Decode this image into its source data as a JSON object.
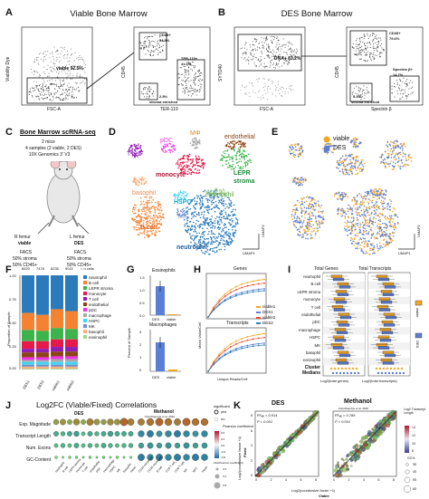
{
  "panels": {
    "A": {
      "letter": "A",
      "title": "Viable Bone Marrow",
      "left": {
        "ylabel": "Viability Dye",
        "xlabel": "FSC-A",
        "gate": "viable 92.5%"
      },
      "right": {
        "ylabel": "CD45",
        "xlabel": "TER-119",
        "gate_cd45": "CD45+",
        "gate_cd45_pct": "54.9%",
        "gate_ter": "TER-119+",
        "gate_ter_pct": "41.0%",
        "gate_stroma_pct": "2.5%",
        "gate_stroma": "stroma enriched"
      }
    },
    "B": {
      "letter": "B",
      "title": "DES Bone Marrow",
      "left": {
        "ylabel": "SYTO40",
        "xlabel": "FSC-A",
        "gate": "DNA+ 83.2%"
      },
      "right": {
        "ylabel": "CD45",
        "xlabel": "Spectrin β",
        "gate_cd45": "CD45+",
        "gate_cd45_pct": "79.6%",
        "gate_spec": "Spectrin β+",
        "gate_spec_pct": "14.7%",
        "gate_stroma_pct": "5.3%",
        "gate_stroma": "stroma enriched"
      }
    },
    "C": {
      "letter": "C",
      "title": "Bone Marrow scRNA-seq",
      "lines": [
        "2 mice",
        "4 samples (2 viable, 2 DES)",
        "10X Genomics 3' V3"
      ],
      "left_femur": "R femur",
      "left_type": "viable",
      "right_femur": "L femur",
      "right_type": "DES",
      "left_sort": [
        "FACS",
        "50% stroma",
        "50% CD45+"
      ],
      "right_sort": [
        "FACS",
        "50% stroma",
        "50% CD45+"
      ]
    },
    "D": {
      "letter": "D",
      "labels": [
        "T cell",
        "pDC",
        "MΦ",
        "endothelial",
        "monocyte",
        "LEPR",
        "stroma",
        "basophil",
        "HSPC",
        "eosinophil",
        "MK",
        "B cell",
        "neutrophil"
      ],
      "axis": [
        "UMAP1",
        "UMAP2"
      ]
    },
    "E": {
      "letter": "E",
      "legend": [
        "viable",
        "DES"
      ],
      "axis": [
        "UMAP1",
        "UMAP2"
      ]
    },
    "F": {
      "letter": "F",
      "counts": [
        "6620",
        "7478",
        "8235",
        "5022"
      ],
      "counts_note": "= n cells",
      "ylabel": "Proportion of Sample",
      "xcats": [
        "DES1",
        "DES2",
        "viable1",
        "viable2"
      ],
      "yticks": [
        "0.00",
        "0.25",
        "0.50",
        "0.75",
        "1.00"
      ],
      "legend": [
        "neutrophil",
        "B cell",
        "LEPR stroma",
        "monocyte",
        "T cell",
        "endothelial",
        "pDC",
        "macrophage",
        "HSPC",
        "MK",
        "basophil",
        "eosinophil"
      ]
    },
    "G": {
      "letter": "G",
      "ylabel": "Percent of Sample",
      "top_title": "Eosinophils",
      "bottom_title": "Macrophages",
      "xcats": [
        "DES",
        "viable"
      ],
      "top_yticks": [
        "0.0",
        "0.5",
        "1.0",
        "1.5"
      ],
      "bottom_yticks": [
        "0",
        "1",
        "2",
        "3"
      ]
    },
    "H": {
      "letter": "H",
      "top_title": "Genes",
      "bottom_title": "Transcripts",
      "ylabel": "Mean Value/Cell",
      "xlabel": "Unique Reads/Cell",
      "legend": [
        "viable1",
        "DES1",
        "viable2",
        "DES2"
      ]
    },
    "I": {
      "letter": "I",
      "left_title": "Total Genes",
      "right_title": "Total Transcripts",
      "rows": [
        "neutrophil",
        "B cell",
        "LEPR stroma",
        "monocyte",
        "T cell",
        "endothelial",
        "pDC",
        "macrophage",
        "HSPC",
        "MK",
        "basophil",
        "eosinophil"
      ],
      "cluster_label": "Cluster",
      "medians_label": "Medians",
      "left_xlabel": "Log2(total genes)",
      "right_xlabel": "Log2(total transcripts)",
      "legend": [
        "viable",
        "DES"
      ]
    },
    "J": {
      "letter": "J",
      "title": "Log2FC (Viable/Fixed) Correlations",
      "left_sub": "DES",
      "right_sub": "Methanol",
      "right_note": "Kolodziejczyk et al. 2020",
      "rows": [
        "Exp. Magnitude",
        "Transcript Length",
        "Num. Exons",
        "GC-Content"
      ],
      "left_cols": [
        "neutrophil",
        "B cell",
        "LEPR stroma",
        "monocyte",
        "T cell",
        "endothelial",
        "pDC",
        "macrophage",
        "HSPC",
        "MK",
        "basophil",
        "mean"
      ],
      "right_cols": [
        "CD14 monocyte",
        "CD16 monocyte",
        "B cell",
        "CD4 T cell",
        "CD8 T cell",
        "NK",
        "NKT",
        "mean"
      ],
      "legend_sig": "significant",
      "legend_sig_vals": [
        "yes",
        "no"
      ],
      "legend_pc": "Pearson coefficient",
      "legend_pc_vals": [
        "0.6",
        "0.3",
        "0.0",
        "-0.3",
        "-0.6"
      ],
      "legend_abs": "Abs(Pearson coefficient)",
      "legend_abs_vals": [
        "0.2",
        "0.4",
        "0.6"
      ]
    },
    "K": {
      "letter": "K",
      "left_title": "DES",
      "right_title": "Methanol",
      "right_note": "Kolodziejczyk et al. 2020",
      "left_r2": "R²ₐₑⱼ = 0.914",
      "left_p": "P < 0.001",
      "right_r2": "R²ₐₑⱼ = 0.789",
      "right_p": "P < 0.001",
      "ylabel": "Log2(counts/size factor +1)",
      "ytitle": "Fixed",
      "xlabel": "Log2(counts/size factor +1)",
      "xtitle": "Viable",
      "ticks": [
        "0",
        "2",
        "4",
        "6",
        "8"
      ],
      "legend_title": "Log2 Transcript Length",
      "legend_vals": [
        "14",
        "12",
        "10",
        "8"
      ],
      "legend_gc": "GC%",
      "legend_gc_vals": [
        "35",
        "45",
        "55",
        "65"
      ]
    }
  },
  "colors": {
    "viable": "#f5a623",
    "des": "#5b7fd6",
    "neutrophil": "#2b7bba",
    "b_cell": "#f58231",
    "lepr": "#3cb44b",
    "monocyte": "#e6194b",
    "t_cell": "#911eb4",
    "endothelial": "#8b4513",
    "pdc": "#f032e6",
    "macrophage": "#aaaaaa",
    "hspc": "#42d4f4",
    "mk": "#6f8fcf",
    "basophil": "#f9b07a",
    "eosinophil": "#a9d18e"
  }
}
